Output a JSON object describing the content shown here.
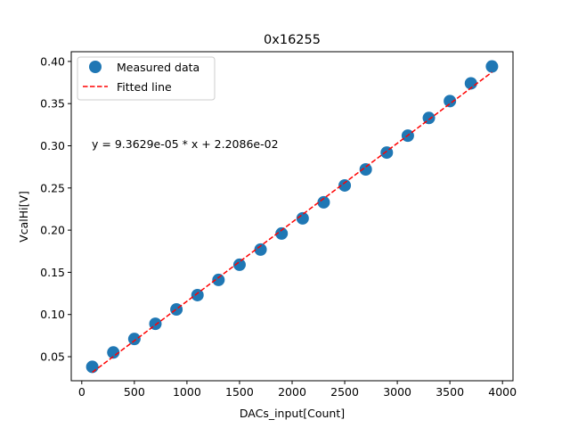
{
  "chart_data": {
    "type": "scatter",
    "title": "0x16255",
    "xlabel": "DACs_input[Count]",
    "ylabel": "VcalHi[V]",
    "xlim": [
      -100,
      4100
    ],
    "ylim": [
      0.0215,
      0.4115
    ],
    "xticks": [
      0,
      500,
      1000,
      1500,
      2000,
      2500,
      3000,
      3500,
      4000
    ],
    "xtick_labels": [
      "0",
      "500",
      "1000",
      "1500",
      "2000",
      "2500",
      "3000",
      "3500",
      "4000"
    ],
    "yticks": [
      0.05,
      0.1,
      0.15,
      0.2,
      0.25,
      0.3,
      0.35,
      0.4
    ],
    "ytick_labels": [
      "0.05",
      "0.10",
      "0.15",
      "0.20",
      "0.25",
      "0.30",
      "0.35",
      "0.40"
    ],
    "grid": false,
    "legend_position": "top-left",
    "series": [
      {
        "name": "Measured data",
        "kind": "marker",
        "color": "#1f77b4",
        "x": [
          100,
          300,
          500,
          700,
          900,
          1100,
          1300,
          1500,
          1700,
          1900,
          2100,
          2300,
          2500,
          2700,
          2900,
          3100,
          3300,
          3500,
          3700,
          3900
        ],
        "y": [
          0.038,
          0.055,
          0.071,
          0.089,
          0.106,
          0.123,
          0.141,
          0.159,
          0.177,
          0.196,
          0.214,
          0.233,
          0.253,
          0.272,
          0.292,
          0.312,
          0.333,
          0.353,
          0.374,
          0.394
        ]
      },
      {
        "name": "Fitted line",
        "kind": "dashed-line",
        "color": "#ff0000",
        "slope": 9.3629e-05,
        "intercept": 0.022086,
        "x_range": [
          100,
          3900
        ]
      }
    ],
    "annotation": "y = 9.3629e-05 * x + 2.2086e-02"
  }
}
